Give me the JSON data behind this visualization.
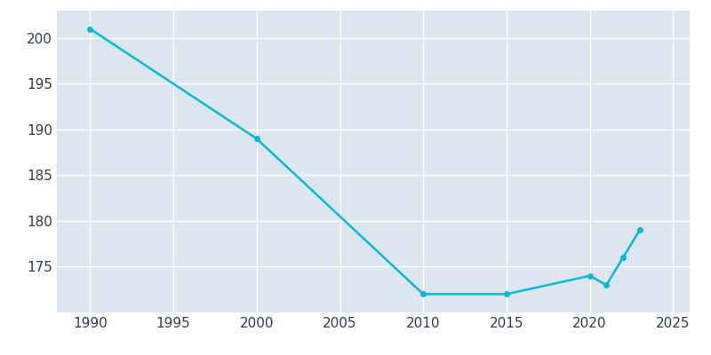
{
  "x": [
    1990,
    2000,
    2010,
    2015,
    2020,
    2021,
    2022,
    2023
  ],
  "y": [
    201,
    189,
    172,
    172,
    174,
    173,
    176,
    179
  ],
  "line_color": "#00bcd4",
  "marker": "o",
  "marker_size": 4,
  "line_width": 1.8,
  "xlabel": "",
  "ylabel": "",
  "xlim": [
    1988,
    2026
  ],
  "ylim": [
    170,
    203
  ],
  "xticks": [
    1990,
    1995,
    2000,
    2005,
    2010,
    2015,
    2020,
    2025
  ],
  "yticks": [
    175,
    180,
    185,
    190,
    195,
    200
  ],
  "background_color": "#ffffff",
  "axes_background_color": "#dce6f0",
  "grid_color": "#ffffff",
  "tick_label_color": "#2e3a5a",
  "tick_fontsize": 11
}
